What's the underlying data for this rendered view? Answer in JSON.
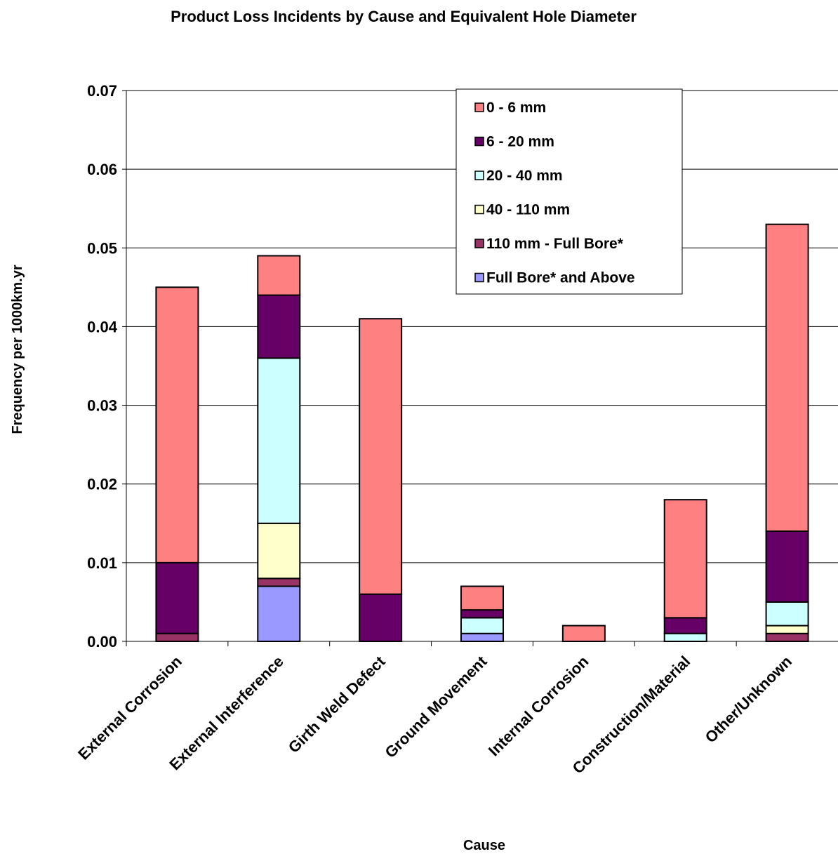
{
  "chart_data": {
    "type": "bar",
    "stacked": true,
    "title": "Product Loss Incidents by Cause and Equivalent Hole Diameter",
    "xlabel": "Cause",
    "ylabel": "Frequency per 1000km.yr",
    "ylim": [
      0,
      0.07
    ],
    "yticks": [
      "0.00",
      "0.01",
      "0.02",
      "0.03",
      "0.04",
      "0.05",
      "0.06",
      "0.07"
    ],
    "grid": true,
    "legend_position": "top-right",
    "categories": [
      "External Corrosion",
      "External Interference",
      "Girth Weld Defect",
      "Ground Movement",
      "Internal Corrosion",
      "Construction/Material",
      "Other/Unknown"
    ],
    "series": [
      {
        "name": "Full Bore* and Above",
        "color": "#9999FF",
        "values": [
          0,
          0.007,
          0,
          0.001,
          0,
          0,
          0
        ]
      },
      {
        "name": "110 mm - Full Bore*",
        "color": "#993366",
        "values": [
          0.001,
          0.001,
          0,
          0,
          0,
          0,
          0.001
        ]
      },
      {
        "name": "40 - 110 mm",
        "color": "#FFFFCC",
        "values": [
          0,
          0.007,
          0,
          0,
          0,
          0,
          0.001
        ]
      },
      {
        "name": "20 - 40 mm",
        "color": "#CCFFFF",
        "values": [
          0,
          0.021,
          0,
          0.002,
          0,
          0.001,
          0.003
        ]
      },
      {
        "name": "6 - 20 mm",
        "color": "#660066",
        "values": [
          0.009,
          0.008,
          0.006,
          0.001,
          0,
          0.002,
          0.009
        ]
      },
      {
        "name": "0 - 6 mm",
        "color": "#FF8080",
        "values": [
          0.035,
          0.005,
          0.035,
          0.003,
          0.002,
          0.015,
          0.039
        ]
      }
    ],
    "legend_order": [
      "0 - 6 mm",
      "6 - 20 mm",
      "20 - 40 mm",
      "40 - 110 mm",
      "110 mm - Full Bore*",
      "Full Bore* and Above"
    ]
  }
}
